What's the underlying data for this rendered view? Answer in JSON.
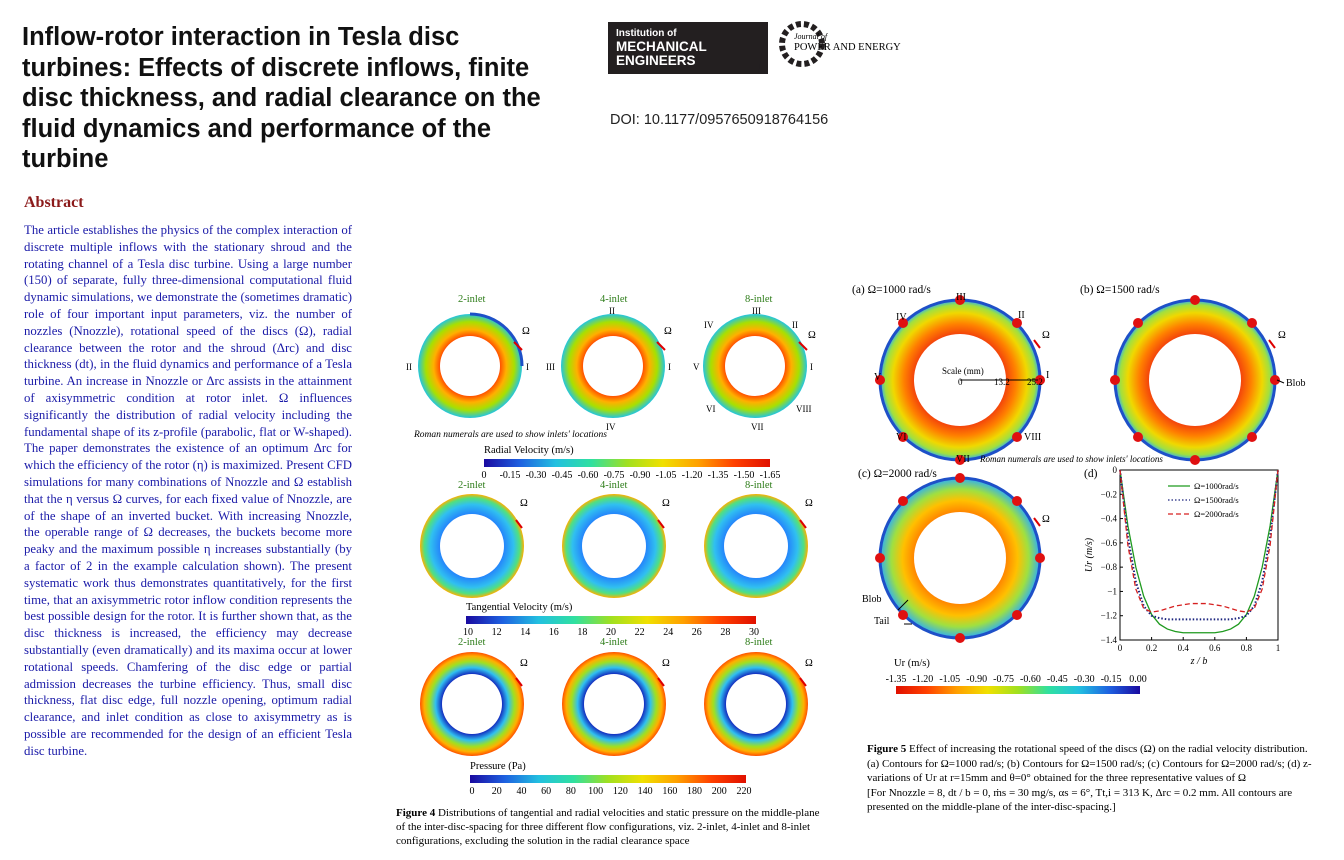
{
  "paper": {
    "title": "Inflow-rotor interaction in Tesla disc turbines: Effects of discrete inflows, finite disc thickness, and radial clearance on the fluid dynamics and performance of the turbine",
    "doi": "DOI: 10.1177/0957650918764156",
    "logos": {
      "imeche_line1": "Institution of",
      "imeche_line2": "MECHANICAL ENGINEERS",
      "journal_line1": "Journal of",
      "journal_line2": "POWER AND ENERGY"
    },
    "abstract_heading": "Abstract",
    "abstract_text": "The article establishes the physics of the complex interaction of discrete multiple inflows with the stationary shroud and the rotating channel of a Tesla disc turbine. Using a large number (150) of separate, fully three-dimensional computational fluid dynamic simulations, we demonstrate the (sometimes dramatic) role of four important input parameters, viz. the number of nozzles (Nnozzle), rotational speed of the discs (Ω), radial clearance between the rotor and the shroud (Δrc) and disc thickness (dt), in the fluid dynamics and performance of a Tesla turbine. An increase in Nnozzle or Δrc assists in the attainment of axisymmetric condition at rotor inlet. Ω influences significantly the distribution of radial velocity including the fundamental shape of its z-profile (parabolic, flat or W-shaped). The paper demonstrates the existence of an optimum Δrc for which the efficiency of the rotor (η) is maximized. Present CFD simulations for many combinations of Nnozzle and Ω establish that the η versus Ω curves, for each fixed value of Nnozzle, are of the shape of an inverted bucket. With increasing Nnozzle, the operable range of Ω decreases, the buckets become more peaky and the maximum possible η increases substantially (by a factor of 2 in the example calculation shown). The present systematic work thus demonstrates quantitatively, for the first time, that an axisymmetric rotor inflow condition represents the best possible design for the rotor. It is further shown that, as the disc thickness is increased, the efficiency may decrease substantially (even dramatically) and its maxima occur at lower rotational speeds. Chamfering of the disc edge or partial admission decreases the turbine efficiency. Thus, small disc thickness, flat disc edge, full nozzle opening, optimum radial clearance, and inlet condition as close to axisymmetry as is possible are recommended for the design of an efficient Tesla disc turbine."
  },
  "figure4": {
    "column_labels": [
      "2-inlet",
      "4-inlet",
      "8-inlet"
    ],
    "omega_symbol": "Ω",
    "numerals_2": [
      "I",
      "II"
    ],
    "numerals_4": [
      "I",
      "II",
      "III",
      "IV"
    ],
    "numerals_8": [
      "I",
      "II",
      "III",
      "IV",
      "V",
      "VI",
      "VII",
      "VIII"
    ],
    "roman_note": "Roman numerals are used to show inlets' locations",
    "radial_bar_title": "Radial Velocity (m/s)",
    "radial_ticks": [
      "0",
      "-0.15",
      "-0.30",
      "-0.45",
      "-0.60",
      "-0.75",
      "-0.90",
      "-1.05",
      "-1.20",
      "-1.35",
      "-1.50",
      "-1.65"
    ],
    "tangential_bar_title": "Tangential Velocity (m/s)",
    "tangential_ticks": [
      "10",
      "12",
      "14",
      "16",
      "18",
      "20",
      "22",
      "24",
      "26",
      "28",
      "30"
    ],
    "pressure_bar_title": "Pressure (Pa)",
    "pressure_ticks": [
      "0",
      "20",
      "40",
      "60",
      "80",
      "100",
      "120",
      "140",
      "160",
      "180",
      "200",
      "220"
    ],
    "caption_label": "Figure 4",
    "caption_text": "Distributions of tangential and radial velocities and static pressure on the middle-plane of the inter-disc-spacing for three different flow configurations, viz. 2-inlet, 4-inlet and 8-inlet configurations, excluding the solution in the radial clearance space"
  },
  "figure5": {
    "panel_a": "(a)  Ω=1000 rad/s",
    "panel_b": "(b)  Ω=1500 rad/s",
    "panel_c": "(c)  Ω=2000 rad/s",
    "panel_d": "(d)",
    "scale_label": "Scale (mm)",
    "scale_ticks": [
      "0",
      "13.2",
      "25.2"
    ],
    "blob_label": "Blob",
    "tail_label": "Tail",
    "roman_note": "Roman numerals are used to show inlets' locations",
    "numerals": [
      "I",
      "II",
      "III",
      "IV",
      "V",
      "VI",
      "VII",
      "VIII"
    ],
    "ur_bar_title": "Ur (m/s)",
    "ur_ticks": [
      "-1.35",
      "-1.20",
      "-1.05",
      "-0.90",
      "-0.75",
      "-0.60",
      "-0.45",
      "-0.30",
      "-0.15",
      "0.00"
    ],
    "caption_label": "Figure 5",
    "caption_line1": "Effect of increasing the rotational speed of the discs (Ω) on the radial velocity distribution.",
    "caption_line2": "(a) Contours for Ω=1000 rad/s; (b) Contours for Ω=1500 rad/s; (c) Contours for Ω=2000 rad/s; (d) z-variations of Ur at r=15mm and θ=0° obtained for the three representative values of Ω",
    "caption_line3": "[For Nnozzle = 8, dt / b = 0, ṁs = 30 mg/s, αs = 6°, Tt,i = 313 K, Δrc = 0.2 mm. All contours are presented on the middle-plane of the inter-disc-spacing.]"
  },
  "chart_data": {
    "type": "line",
    "xlabel": "z / b",
    "ylabel": "Ur (m/s)",
    "xlim": [
      0,
      1
    ],
    "ylim": [
      -1.4,
      0
    ],
    "xticks": [
      "0",
      "0.2",
      "0.4",
      "0.6",
      "0.8",
      "1"
    ],
    "yticks": [
      "0",
      "−0.2",
      "−0.4",
      "−0.6",
      "−0.8",
      "−1",
      "−1.2",
      "−1.4"
    ],
    "legend_position": "top-right",
    "x": [
      0,
      0.05,
      0.1,
      0.15,
      0.2,
      0.25,
      0.3,
      0.35,
      0.4,
      0.45,
      0.5,
      0.55,
      0.6,
      0.65,
      0.7,
      0.75,
      0.8,
      0.85,
      0.9,
      0.95,
      1
    ],
    "series": [
      {
        "name": "Ω=1000rad/s",
        "style": "solid",
        "color": "#1f9a1f",
        "values": [
          0,
          -0.46,
          -0.8,
          -1.04,
          -1.19,
          -1.27,
          -1.31,
          -1.33,
          -1.34,
          -1.34,
          -1.34,
          -1.34,
          -1.34,
          -1.33,
          -1.31,
          -1.27,
          -1.19,
          -1.04,
          -0.8,
          -0.46,
          0
        ]
      },
      {
        "name": "Ω=1500rad/s",
        "style": "dotted",
        "color": "#1a237e",
        "values": [
          0,
          -0.55,
          -0.92,
          -1.12,
          -1.2,
          -1.22,
          -1.23,
          -1.23,
          -1.23,
          -1.23,
          -1.23,
          -1.23,
          -1.23,
          -1.23,
          -1.23,
          -1.22,
          -1.2,
          -1.12,
          -0.92,
          -0.55,
          0
        ]
      },
      {
        "name": "Ω=2000rad/s",
        "style": "dashed",
        "color": "#d62020",
        "values": [
          0,
          -0.62,
          -0.98,
          -1.14,
          -1.17,
          -1.16,
          -1.14,
          -1.12,
          -1.11,
          -1.1,
          -1.1,
          -1.1,
          -1.11,
          -1.12,
          -1.14,
          -1.16,
          -1.17,
          -1.14,
          -0.98,
          -0.62,
          0
        ]
      }
    ]
  }
}
